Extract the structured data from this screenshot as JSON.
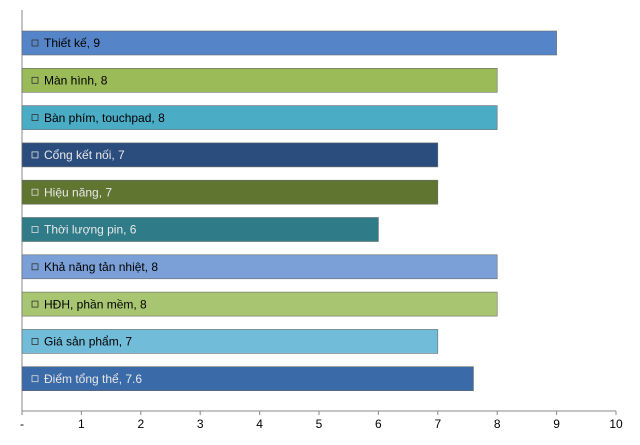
{
  "chart_data": {
    "type": "barh",
    "value_labels": [
      "Thiết kế,  9",
      "Màn hình,  8",
      "Bàn phím, touchpad,  8",
      "Cổng kết nối,  7",
      "Hiệu năng,  7",
      "Thời lượng pin,  6",
      "Khả năng tản nhiệt,  8",
      "HĐH, phần mềm,  8",
      "Giá sản phẩm,  7",
      "Điểm tổng thể,  7.6"
    ],
    "values": [
      9,
      8,
      8,
      7,
      7,
      6,
      8,
      8,
      7,
      7.6
    ],
    "colors": [
      "#5585c8",
      "#9bbb59",
      "#4bacc6",
      "#2b4d7e",
      "#5f7530",
      "#2f7c88",
      "#7ba0d8",
      "#a8c672",
      "#71bcd8",
      "#3a6aa8"
    ],
    "xlim": [
      0,
      10
    ],
    "xticks": [
      {
        "value": 0,
        "label": "-"
      },
      1,
      2,
      3,
      4,
      5,
      6,
      7,
      8,
      9,
      10
    ]
  }
}
